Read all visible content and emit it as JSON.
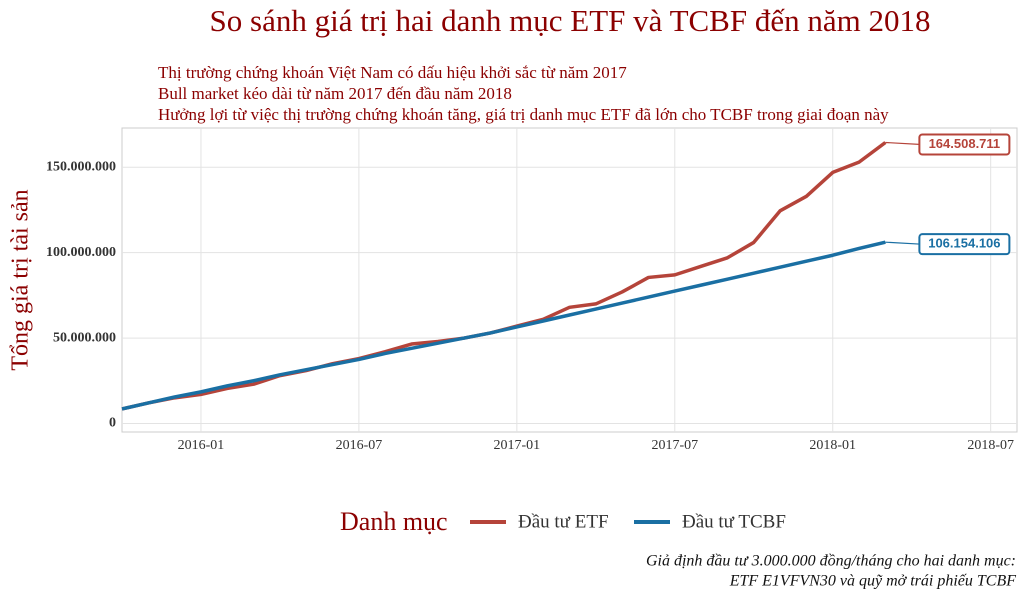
{
  "chart_data": {
    "type": "line",
    "title": "So sánh giá trị hai danh mục ETF và TCBF đến năm 2018",
    "subtitle": [
      "Thị trường chứng khoán Việt Nam có dấu hiệu khởi sắc từ năm 2017",
      "Bull market kéo dài từ năm 2017 đến đầu năm 2018",
      "Hưởng lợi từ việc thị trường chứng khoán tăng, giá trị danh mục ETF đã lớn cho TCBF trong giai đoạn này"
    ],
    "y_label": "Tổng giá trị tài sản",
    "legend_title": "Danh mục",
    "caption": [
      "Giả định đầu tư 3.000.000 đồng/tháng cho hai danh mục:",
      "ETF E1VFVN30 và quỹ mở trái phiếu TCBF"
    ],
    "x": [
      "2015-10",
      "2015-11",
      "2015-12",
      "2016-01",
      "2016-02",
      "2016-03",
      "2016-04",
      "2016-05",
      "2016-06",
      "2016-07",
      "2016-08",
      "2016-09",
      "2016-10",
      "2016-11",
      "2016-12",
      "2017-01",
      "2017-02",
      "2017-03",
      "2017-04",
      "2017-05",
      "2017-06",
      "2017-07",
      "2017-08",
      "2017-09",
      "2017-10",
      "2017-11",
      "2017-12",
      "2018-01",
      "2018-02",
      "2018-03"
    ],
    "series": [
      {
        "name": "Đầu tư ETF",
        "color": "#b5443a",
        "values": [
          8500000,
          12000000,
          15000000,
          17000000,
          20500000,
          23000000,
          28000000,
          31000000,
          35000000,
          38000000,
          42000000,
          46500000,
          48000000,
          50000000,
          53000000,
          57000000,
          61000000,
          68000000,
          70000000,
          77000000,
          85500000,
          87000000,
          92000000,
          97000000,
          106000000,
          124500000,
          133000000,
          147000000,
          153000000,
          164508711
        ],
        "end_label": "164.508.711"
      },
      {
        "name": "Đầu tư TCBF",
        "color": "#1a6fa3",
        "values": [
          8500000,
          12000000,
          15500000,
          18500000,
          22000000,
          25000000,
          28500000,
          31500000,
          34500000,
          37500000,
          41000000,
          44000000,
          47000000,
          50000000,
          53000000,
          56500000,
          60000000,
          63500000,
          67000000,
          70500000,
          74000000,
          77500000,
          81000000,
          84500000,
          88000000,
          91500000,
          95000000,
          98500000,
          102500000,
          106154106
        ],
        "end_label": "106.154.106"
      }
    ],
    "xlim": [
      "2015-10",
      "2018-08"
    ],
    "xticks": [
      "2016-01",
      "2016-07",
      "2017-01",
      "2017-07",
      "2018-01",
      "2018-07"
    ],
    "ylim": [
      -5000000,
      173000000
    ],
    "yticks": [
      0,
      {
        "value": 50000000,
        "label": "50.000.000"
      },
      {
        "value": 100000000,
        "label": "100.000.000"
      },
      {
        "value": 150000000,
        "label": "150.000.000"
      }
    ],
    "grid": true,
    "legend": "bottom"
  }
}
